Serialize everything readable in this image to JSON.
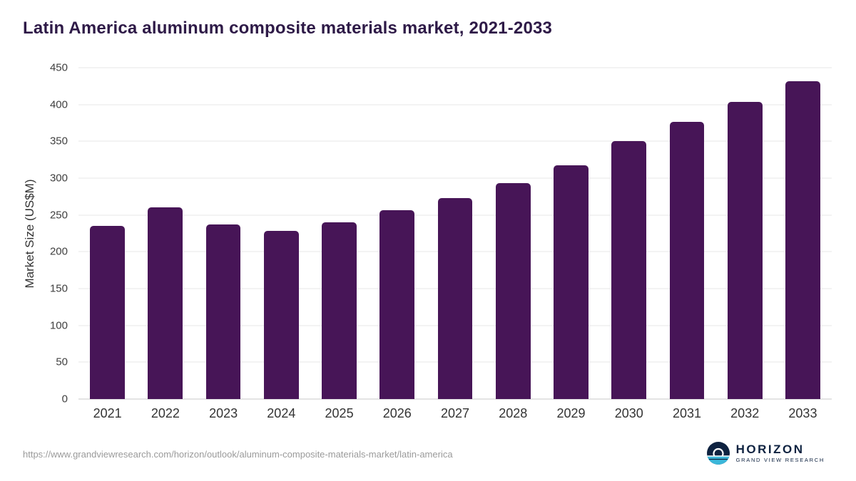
{
  "page": {
    "title": "Latin America aluminum composite materials market, 2021-2033",
    "source_url": "https://www.grandviewresearch.com/horizon/outlook/aluminum-composite-materials-market/latin-america"
  },
  "logo": {
    "name": "HORIZON",
    "subtext": "GRAND VIEW RESEARCH"
  },
  "chart_data": {
    "type": "bar",
    "title": "Latin America aluminum composite materials market, 2021-2033",
    "categories": [
      "2021",
      "2022",
      "2023",
      "2024",
      "2025",
      "2026",
      "2027",
      "2028",
      "2029",
      "2030",
      "2031",
      "2032",
      "2033"
    ],
    "values": [
      235,
      260,
      237,
      228,
      240,
      256,
      273,
      293,
      317,
      350,
      376,
      404,
      432
    ],
    "xlabel": "",
    "ylabel": "Market Size (US$M)",
    "ylim": [
      0,
      450
    ],
    "yticks": [
      0,
      50,
      100,
      150,
      200,
      250,
      300,
      350,
      400,
      450
    ],
    "grid": "horizontal",
    "legend": "none",
    "bar_color": "#471557",
    "title_color": "#2e1a47"
  }
}
